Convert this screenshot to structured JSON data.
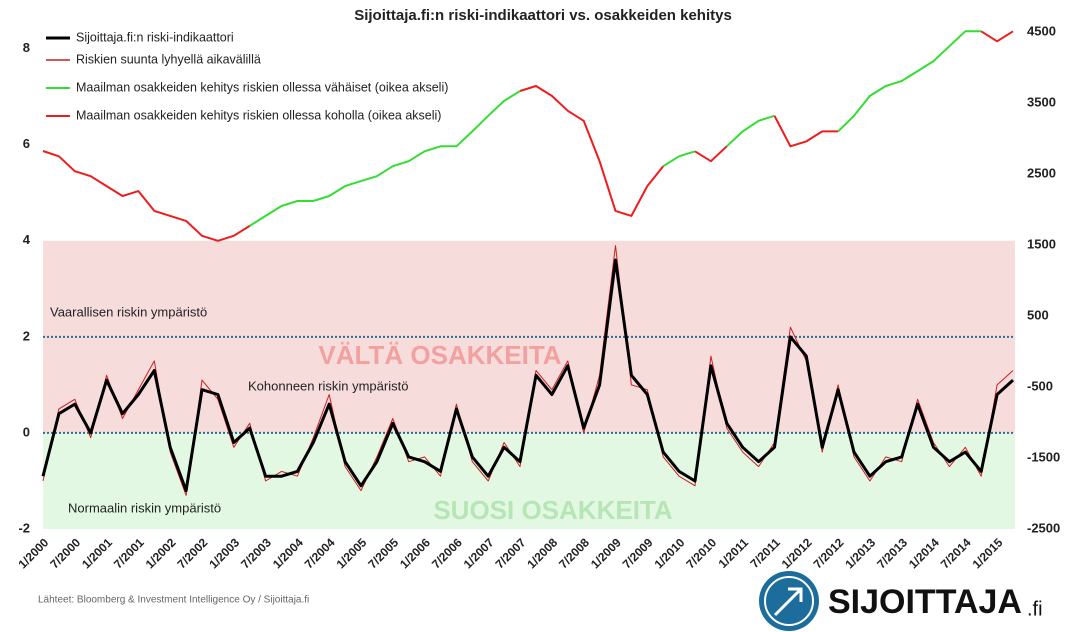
{
  "chart_data": {
    "type": "line",
    "title": "Sijoittaja.fi:n riski-indikaattori vs. osakkeiden kehitys",
    "categories": [
      "1/2000",
      null,
      "7/2000",
      null,
      "1/2001",
      null,
      "7/2001",
      null,
      "1/2002",
      null,
      "7/2002",
      null,
      "1/2003",
      null,
      "7/2003",
      null,
      "1/2004",
      null,
      "7/2004",
      null,
      "1/2005",
      null,
      "7/2005",
      null,
      "1/2006",
      null,
      "7/2006",
      null,
      "1/2007",
      null,
      "7/2007",
      null,
      "1/2008",
      null,
      "7/2008",
      null,
      "1/2009",
      null,
      "7/2009",
      null,
      "1/2010",
      null,
      "7/2010",
      null,
      "1/2011",
      null,
      "7/2011",
      null,
      "1/2012",
      null,
      "7/2012",
      null,
      "1/2013",
      null,
      "7/2013",
      null,
      "1/2014",
      null,
      "7/2014",
      null,
      "1/2015",
      null
    ],
    "series": [
      {
        "name": "Sijoittaja.fi:n riski-indikaattori",
        "color": "#000000",
        "width": 3,
        "values": [
          -0.9,
          0.4,
          0.6,
          0.0,
          1.1,
          0.4,
          0.8,
          1.3,
          -0.3,
          -1.2,
          0.9,
          0.8,
          -0.2,
          0.1,
          -0.9,
          -0.9,
          -0.8,
          -0.2,
          0.6,
          -0.6,
          -1.1,
          -0.6,
          0.2,
          -0.5,
          -0.6,
          -0.8,
          0.5,
          -0.5,
          -0.9,
          -0.3,
          -0.6,
          1.2,
          0.8,
          1.4,
          0.1,
          1.0,
          3.6,
          1.2,
          0.8,
          -0.4,
          -0.8,
          -1.0,
          1.4,
          0.2,
          -0.3,
          -0.6,
          -0.3,
          2.0,
          1.6,
          -0.3,
          0.9,
          -0.4,
          -0.9,
          -0.6,
          -0.5,
          0.6,
          -0.3,
          -0.6,
          -0.4,
          -0.8,
          0.8,
          1.1
        ]
      },
      {
        "name": "Riskien suunta lyhyellä aikavälillä",
        "color": "#cc1f1f",
        "width": 1,
        "values": [
          -1.0,
          0.5,
          0.7,
          -0.1,
          1.2,
          0.3,
          0.9,
          1.5,
          -0.4,
          -1.3,
          1.1,
          0.7,
          -0.3,
          0.2,
          -1.0,
          -0.8,
          -0.9,
          -0.1,
          0.8,
          -0.7,
          -1.2,
          -0.5,
          0.3,
          -0.6,
          -0.5,
          -0.9,
          0.6,
          -0.6,
          -1.0,
          -0.2,
          -0.7,
          1.3,
          0.9,
          1.5,
          0.0,
          1.2,
          3.9,
          1.0,
          0.9,
          -0.5,
          -0.9,
          -1.1,
          1.6,
          0.1,
          -0.4,
          -0.7,
          -0.2,
          2.2,
          1.5,
          -0.4,
          1.0,
          -0.5,
          -1.0,
          -0.5,
          -0.6,
          0.7,
          -0.2,
          -0.7,
          -0.3,
          -0.9,
          1.0,
          1.3
        ]
      },
      {
        "name": "Maailman osakkeiden kehitys riskien ollessa vähäiset (oikea akseli)",
        "color": "#33dd33",
        "width": 2,
        "axis": "y2",
        "values": [
          2825,
          null,
          null,
          null,
          null,
          null,
          null,
          null,
          null,
          null,
          null,
          null,
          null,
          1770,
          1910,
          2050,
          2120,
          2120,
          2190,
          2330,
          2400,
          2470,
          2610,
          2680,
          2820,
          2890,
          2890,
          3100,
          3320,
          3530,
          3670,
          null,
          null,
          null,
          null,
          null,
          null,
          null,
          null,
          2610,
          2750,
          2820,
          null,
          2890,
          3100,
          3250,
          3320,
          null,
          null,
          null,
          3100,
          3320,
          3600,
          3740,
          3810,
          3950,
          4090,
          4300,
          4510,
          4510,
          null,
          null
        ]
      },
      {
        "name": "Maailman osakkeiden kehitys riskien ollessa koholla (oikea akseli)",
        "color": "#ee1c1c",
        "width": 2,
        "axis": "y2",
        "values": [
          2825,
          2750,
          2540,
          2470,
          2330,
          2190,
          2260,
          1980,
          1910,
          1840,
          1630,
          1560,
          1630,
          1770,
          null,
          null,
          null,
          null,
          null,
          null,
          null,
          null,
          null,
          null,
          null,
          null,
          null,
          null,
          null,
          null,
          3670,
          3740,
          3600,
          3390,
          3250,
          2680,
          1980,
          1910,
          2330,
          2610,
          null,
          2820,
          2680,
          2890,
          null,
          null,
          3320,
          2890,
          2960,
          3100,
          3100,
          null,
          null,
          null,
          null,
          null,
          null,
          null,
          null,
          4510,
          4370,
          4510
        ]
      }
    ],
    "ylim": [
      -2,
      8.7
    ],
    "yticks": [
      -2,
      0,
      2,
      4,
      6,
      8
    ],
    "y2lim": [
      -2500,
      4740
    ],
    "y2ticks": [
      -2500,
      -1500,
      -500,
      500,
      1500,
      2500,
      3500,
      4500
    ],
    "bands": [
      {
        "from": 0,
        "to": 4,
        "color": "#f7dcdc"
      },
      {
        "from": -2,
        "to": 0,
        "color": "#e3f8e3"
      }
    ],
    "hlines": [
      2,
      0
    ],
    "annotations": [
      "Vaarallisen riskin ympäristö",
      "Kohonneen riskin ympäristö",
      "Normaalin riskin ympäristö",
      "VÄLTÄ OSAKKEITA",
      "SUOSI OSAKKEITA"
    ],
    "legend": "top-left",
    "source": "Lähteet: Bloomberg & Investment Intelligence Oy / Sijoittaja.fi"
  },
  "logo": {
    "name": "SIJOITTAJA",
    "suffix": ".fi"
  }
}
